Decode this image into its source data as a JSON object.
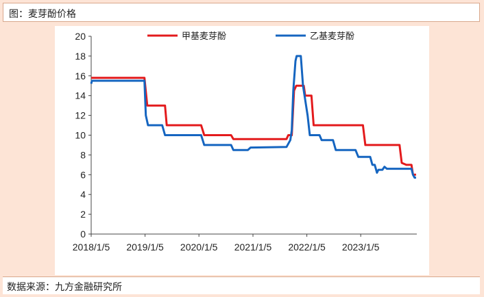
{
  "page": {
    "title": "图：麦芽酚价格",
    "source": "数据来源：九方金融研究所"
  },
  "chart_data": {
    "type": "line",
    "title": "",
    "xlabel": "",
    "ylabel": "",
    "ylim": [
      0,
      20
    ],
    "yticks": [
      0,
      2,
      4,
      6,
      8,
      10,
      12,
      14,
      16,
      18,
      20
    ],
    "xlim": [
      "2018-01-05",
      "2024-01-20"
    ],
    "xtick_labels": [
      "2018/1/5",
      "2019/1/5",
      "2020/1/5",
      "2021/1/5",
      "2022/1/5",
      "2023/1/5"
    ],
    "xtick_dates": [
      "2018-01-05",
      "2019-01-05",
      "2020-01-05",
      "2021-01-05",
      "2022-01-05",
      "2023-01-05"
    ],
    "grid": false,
    "legend": "top-center",
    "series": [
      {
        "name": "甲基麦芽酚",
        "color": "#e31a1c",
        "points": [
          [
            "2018-01-05",
            15.8
          ],
          [
            "2019-01-01",
            15.8
          ],
          [
            "2019-01-20",
            13.0
          ],
          [
            "2019-05-20",
            13.0
          ],
          [
            "2019-06-01",
            11.0
          ],
          [
            "2020-01-20",
            11.0
          ],
          [
            "2020-02-10",
            10.0
          ],
          [
            "2020-08-10",
            10.0
          ],
          [
            "2020-08-25",
            9.6
          ],
          [
            "2021-08-20",
            9.6
          ],
          [
            "2021-09-01",
            10.0
          ],
          [
            "2021-09-25",
            10.0
          ],
          [
            "2021-10-10",
            14.5
          ],
          [
            "2021-10-25",
            15.0
          ],
          [
            "2021-12-15",
            15.0
          ],
          [
            "2021-12-25",
            14.0
          ],
          [
            "2022-02-05",
            14.0
          ],
          [
            "2022-02-20",
            11.0
          ],
          [
            "2023-01-20",
            11.0
          ],
          [
            "2023-02-05",
            9.0
          ],
          [
            "2023-09-25",
            9.0
          ],
          [
            "2023-10-10",
            7.2
          ],
          [
            "2023-11-10",
            7.0
          ],
          [
            "2023-12-15",
            7.0
          ],
          [
            "2023-12-25",
            6.0
          ],
          [
            "2024-01-15",
            6.0
          ]
        ]
      },
      {
        "name": "乙基麦芽酚",
        "color": "#1565c0",
        "points": [
          [
            "2018-01-05",
            15.2
          ],
          [
            "2018-01-10",
            15.5
          ],
          [
            "2019-01-01",
            15.5
          ],
          [
            "2019-01-10",
            12.0
          ],
          [
            "2019-01-25",
            11.0
          ],
          [
            "2019-05-01",
            11.0
          ],
          [
            "2019-05-20",
            10.0
          ],
          [
            "2020-01-20",
            10.0
          ],
          [
            "2020-02-10",
            9.0
          ],
          [
            "2020-08-10",
            9.0
          ],
          [
            "2020-08-25",
            8.5
          ],
          [
            "2020-12-01",
            8.5
          ],
          [
            "2020-12-20",
            8.75
          ],
          [
            "2021-08-20",
            8.8
          ],
          [
            "2021-09-15",
            9.5
          ],
          [
            "2021-09-25",
            10.5
          ],
          [
            "2021-10-05",
            14.5
          ],
          [
            "2021-10-20",
            17.5
          ],
          [
            "2021-10-28",
            18.0
          ],
          [
            "2021-11-25",
            18.0
          ],
          [
            "2021-12-10",
            15.0
          ],
          [
            "2022-01-10",
            12.0
          ],
          [
            "2022-01-25",
            10.0
          ],
          [
            "2022-04-01",
            10.0
          ],
          [
            "2022-04-15",
            9.5
          ],
          [
            "2022-07-01",
            9.5
          ],
          [
            "2022-07-20",
            8.5
          ],
          [
            "2022-12-01",
            8.5
          ],
          [
            "2022-12-20",
            7.8
          ],
          [
            "2023-03-10",
            7.8
          ],
          [
            "2023-03-25",
            7.0
          ],
          [
            "2023-04-10",
            7.0
          ],
          [
            "2023-04-25",
            6.2
          ],
          [
            "2023-05-05",
            6.5
          ],
          [
            "2023-06-01",
            6.5
          ],
          [
            "2023-06-15",
            6.8
          ],
          [
            "2023-07-01",
            6.6
          ],
          [
            "2023-12-15",
            6.6
          ],
          [
            "2023-12-25",
            6.0
          ],
          [
            "2024-01-05",
            5.7
          ],
          [
            "2024-01-15",
            5.7
          ]
        ]
      }
    ]
  }
}
